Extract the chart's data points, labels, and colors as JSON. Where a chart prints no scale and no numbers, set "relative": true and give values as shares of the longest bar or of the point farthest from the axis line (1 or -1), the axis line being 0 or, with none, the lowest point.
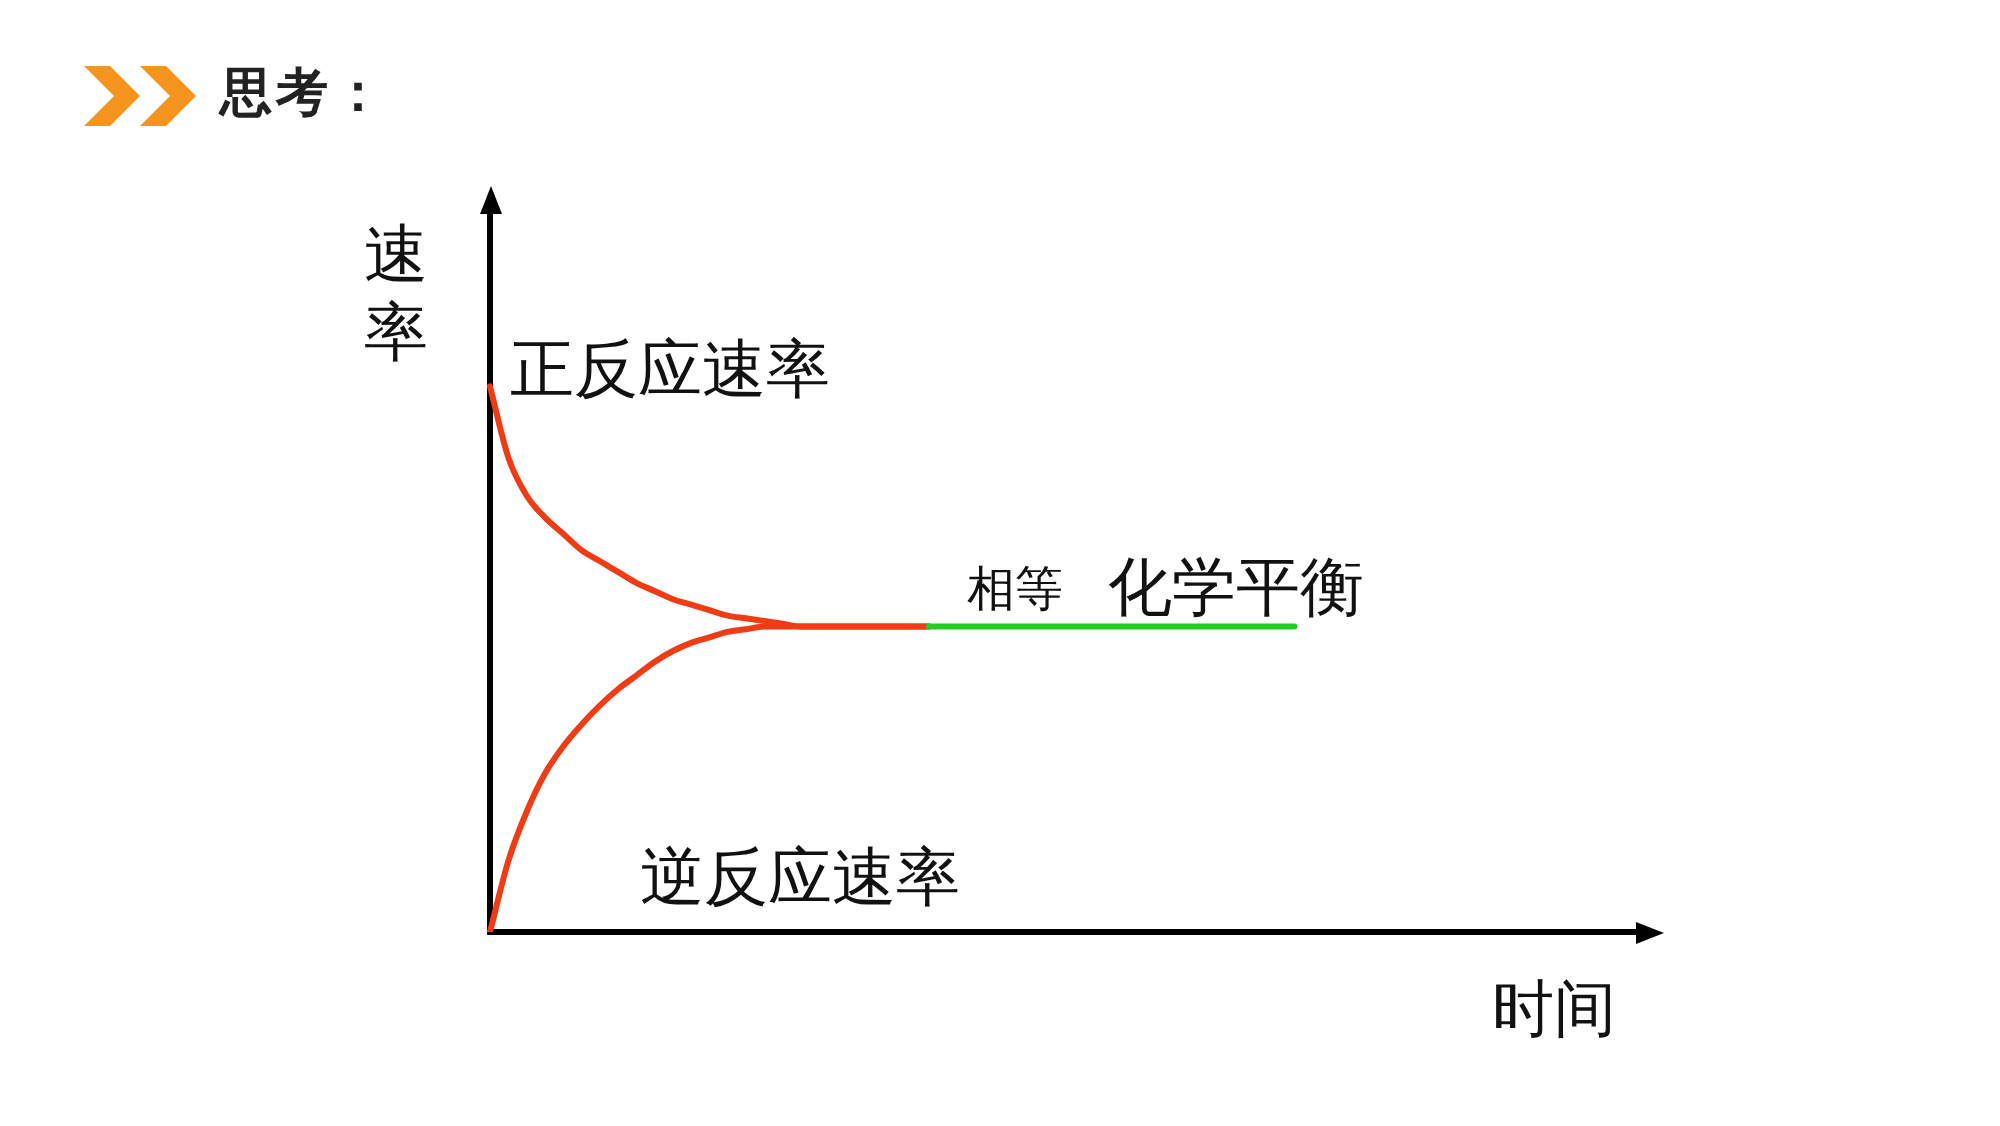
{
  "chart_data": {
    "type": "line",
    "title": "思考：",
    "xlabel": "时间",
    "ylabel": "速率",
    "relative": true,
    "categories": [
      null,
      null,
      null,
      null,
      null,
      null,
      null,
      null,
      null,
      null,
      null,
      null,
      null,
      null,
      null,
      null,
      null,
      null,
      null,
      null,
      null,
      null,
      null,
      null,
      null,
      null,
      null,
      null,
      null,
      null,
      null,
      null,
      null,
      null,
      null,
      null,
      null,
      null,
      null,
      null,
      null,
      null,
      null,
      null,
      null,
      null,
      null,
      null,
      null,
      null,
      null,
      null,
      null,
      null,
      null,
      null,
      null,
      null,
      null,
      null,
      null,
      null,
      null,
      null,
      null
    ],
    "series": [
      {
        "name": "正反应速率",
        "color": "#f03c14",
        "values": [
          1,
          0.87,
          0.8,
          0.76,
          0.73,
          0.7,
          0.68,
          0.66,
          0.64,
          0.625,
          0.61,
          0.6,
          0.59,
          0.58,
          0.575,
          0.57,
          0.565,
          0.56,
          0.56,
          0.56,
          0.56,
          0.56,
          0.56,
          0.56,
          0.56,
          null,
          null,
          null,
          null,
          null,
          null,
          null,
          null,
          null,
          null,
          null,
          null,
          null,
          null,
          null,
          null,
          null,
          null,
          null,
          null,
          null,
          null,
          null,
          null,
          null,
          null,
          null,
          null,
          null,
          null,
          null,
          null,
          null,
          null,
          null,
          null,
          null,
          null,
          null,
          null
        ]
      },
      {
        "name": "逆反应速率",
        "color": "#f03c14",
        "values": [
          0,
          0.13,
          0.22,
          0.29,
          0.34,
          0.38,
          0.415,
          0.445,
          0.47,
          0.495,
          0.515,
          0.53,
          0.54,
          0.55,
          0.555,
          0.56,
          0.56,
          0.56,
          0.56,
          0.56,
          0.56,
          0.56,
          0.56,
          0.56,
          0.56,
          null,
          null,
          null,
          null,
          null,
          null,
          null,
          null,
          null,
          null,
          null,
          null,
          null,
          null,
          null,
          null,
          null,
          null,
          null,
          null,
          null,
          null,
          null,
          null,
          null,
          null,
          null,
          null,
          null,
          null,
          null,
          null,
          null,
          null,
          null,
          null,
          null,
          null,
          null,
          null
        ]
      },
      {
        "name": "化学平衡",
        "color": "#22cc22",
        "values": [
          null,
          null,
          null,
          null,
          null,
          null,
          null,
          null,
          null,
          null,
          null,
          null,
          null,
          null,
          null,
          null,
          null,
          null,
          null,
          null,
          null,
          null,
          null,
          null,
          0.56,
          0.56,
          0.56,
          0.56,
          0.56,
          0.56,
          0.56,
          0.56,
          0.56,
          0.56,
          0.56,
          0.56,
          0.56,
          0.56,
          0.56,
          0.56,
          0.56,
          0.56,
          0.56,
          0.56,
          0.56,
          null,
          null,
          null,
          null,
          null,
          null,
          null,
          null,
          null,
          null,
          null,
          null,
          null,
          null,
          null,
          null,
          null,
          null,
          null,
          null
        ]
      }
    ],
    "annotations": [
      "相等"
    ],
    "legend": false,
    "marker": "none",
    "line_style": "solid",
    "grid": false
  }
}
